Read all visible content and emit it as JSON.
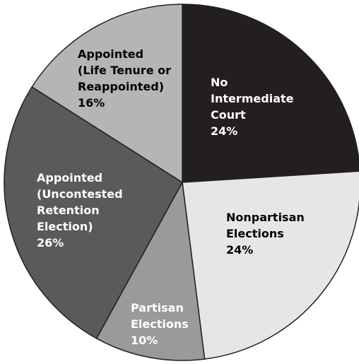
{
  "chart_data": {
    "type": "pie",
    "categories": [
      [
        "No",
        "Intermediate",
        "Court"
      ],
      [
        "Nonpartisan",
        "Elections"
      ],
      [
        "Partisan",
        "Elections"
      ],
      [
        "Appointed",
        "(Uncontested",
        "Retention",
        "Election)"
      ],
      [
        "Appointed",
        "(Life Tenure or",
        "Reappointed)"
      ]
    ],
    "values": [
      24,
      24,
      10,
      26,
      16
    ],
    "value_labels": [
      "24%",
      "24%",
      "10%",
      "26%",
      "16%"
    ],
    "colors": [
      "#231f20",
      "#e6e6e6",
      "#9a9a9a",
      "#5a5a5a",
      "#b5b5b5"
    ],
    "start_angle": 0,
    "direction": "clockwise"
  }
}
